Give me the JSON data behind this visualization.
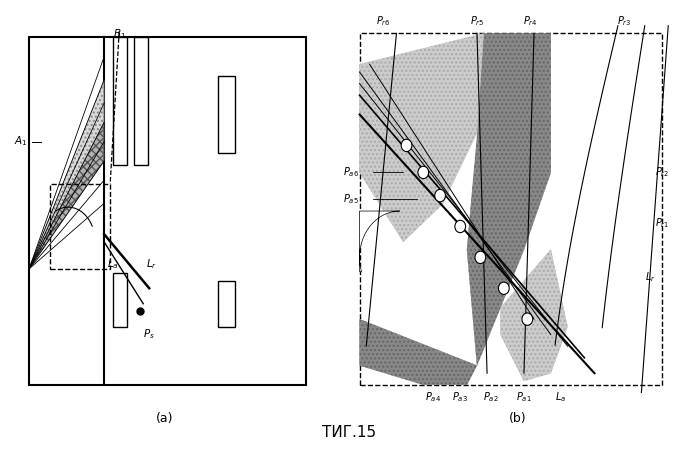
{
  "fig_width": 6.99,
  "fig_height": 4.49,
  "dpi": 100,
  "bg_color": "#ffffff",
  "caption": "ΤИГ.15",
  "label_a": "(a)",
  "label_b": "(b)"
}
